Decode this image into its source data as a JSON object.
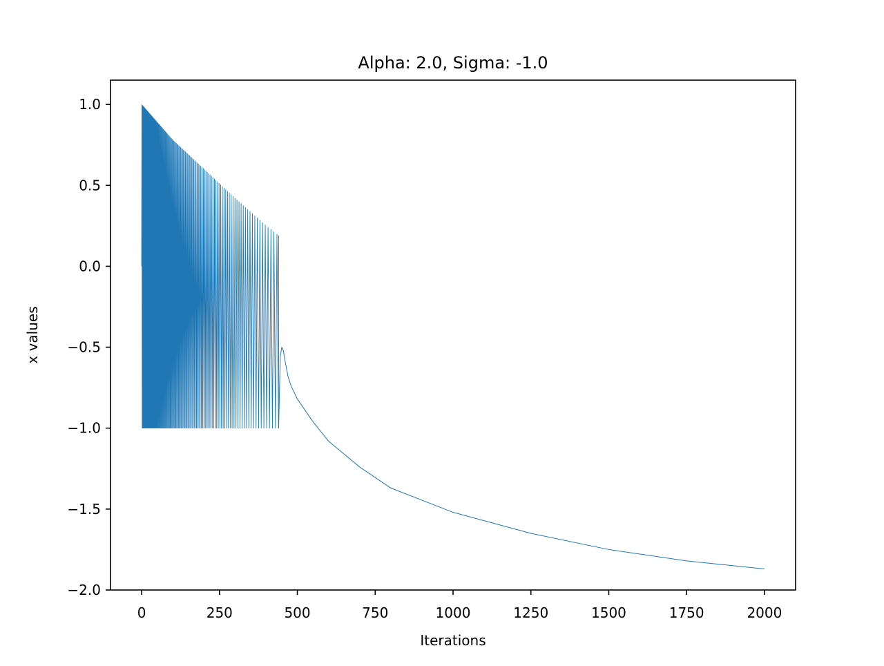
{
  "chart_data": {
    "type": "line",
    "title": "Alpha: 2.0, Sigma: -1.0",
    "xlabel": "Iterations",
    "ylabel": "x values",
    "xlim": [
      -100,
      2100
    ],
    "ylim": [
      -2.0,
      1.15
    ],
    "xticks": [
      0,
      250,
      500,
      750,
      1000,
      1250,
      1500,
      1750,
      2000
    ],
    "xtick_labels": [
      "0",
      "250",
      "500",
      "750",
      "1000",
      "1250",
      "1500",
      "1750",
      "2000"
    ],
    "yticks": [
      1.0,
      0.5,
      0.0,
      -0.5,
      -1.0,
      -1.5,
      -2.0
    ],
    "ytick_labels": [
      "1.0",
      "0.5",
      "0.0",
      "−0.5",
      "−1.0",
      "−1.5",
      "−2.0"
    ],
    "grid": false,
    "series": [
      {
        "color": "#1f77b4",
        "segments": [
          {
            "kind": "oscillation",
            "x_range": [
              0,
              440
            ],
            "low": -1.0,
            "upper_envelope": {
              "x": [
                0,
                100,
                200,
                300,
                400,
                440
              ],
              "y": [
                1.0,
                0.78,
                0.6,
                0.42,
                0.25,
                0.19
              ]
            }
          },
          {
            "kind": "line",
            "x": [
              440,
              445,
              450,
              455,
              460,
              470,
              480,
              500,
              550,
              600,
              700,
              800,
              1000,
              1250,
              1500,
              1750,
              2000
            ],
            "y": [
              -1.0,
              -0.56,
              -0.5,
              -0.52,
              -0.58,
              -0.68,
              -0.74,
              -0.82,
              -0.96,
              -1.08,
              -1.24,
              -1.37,
              -1.52,
              -1.65,
              -1.75,
              -1.82,
              -1.87
            ]
          }
        ]
      }
    ]
  }
}
